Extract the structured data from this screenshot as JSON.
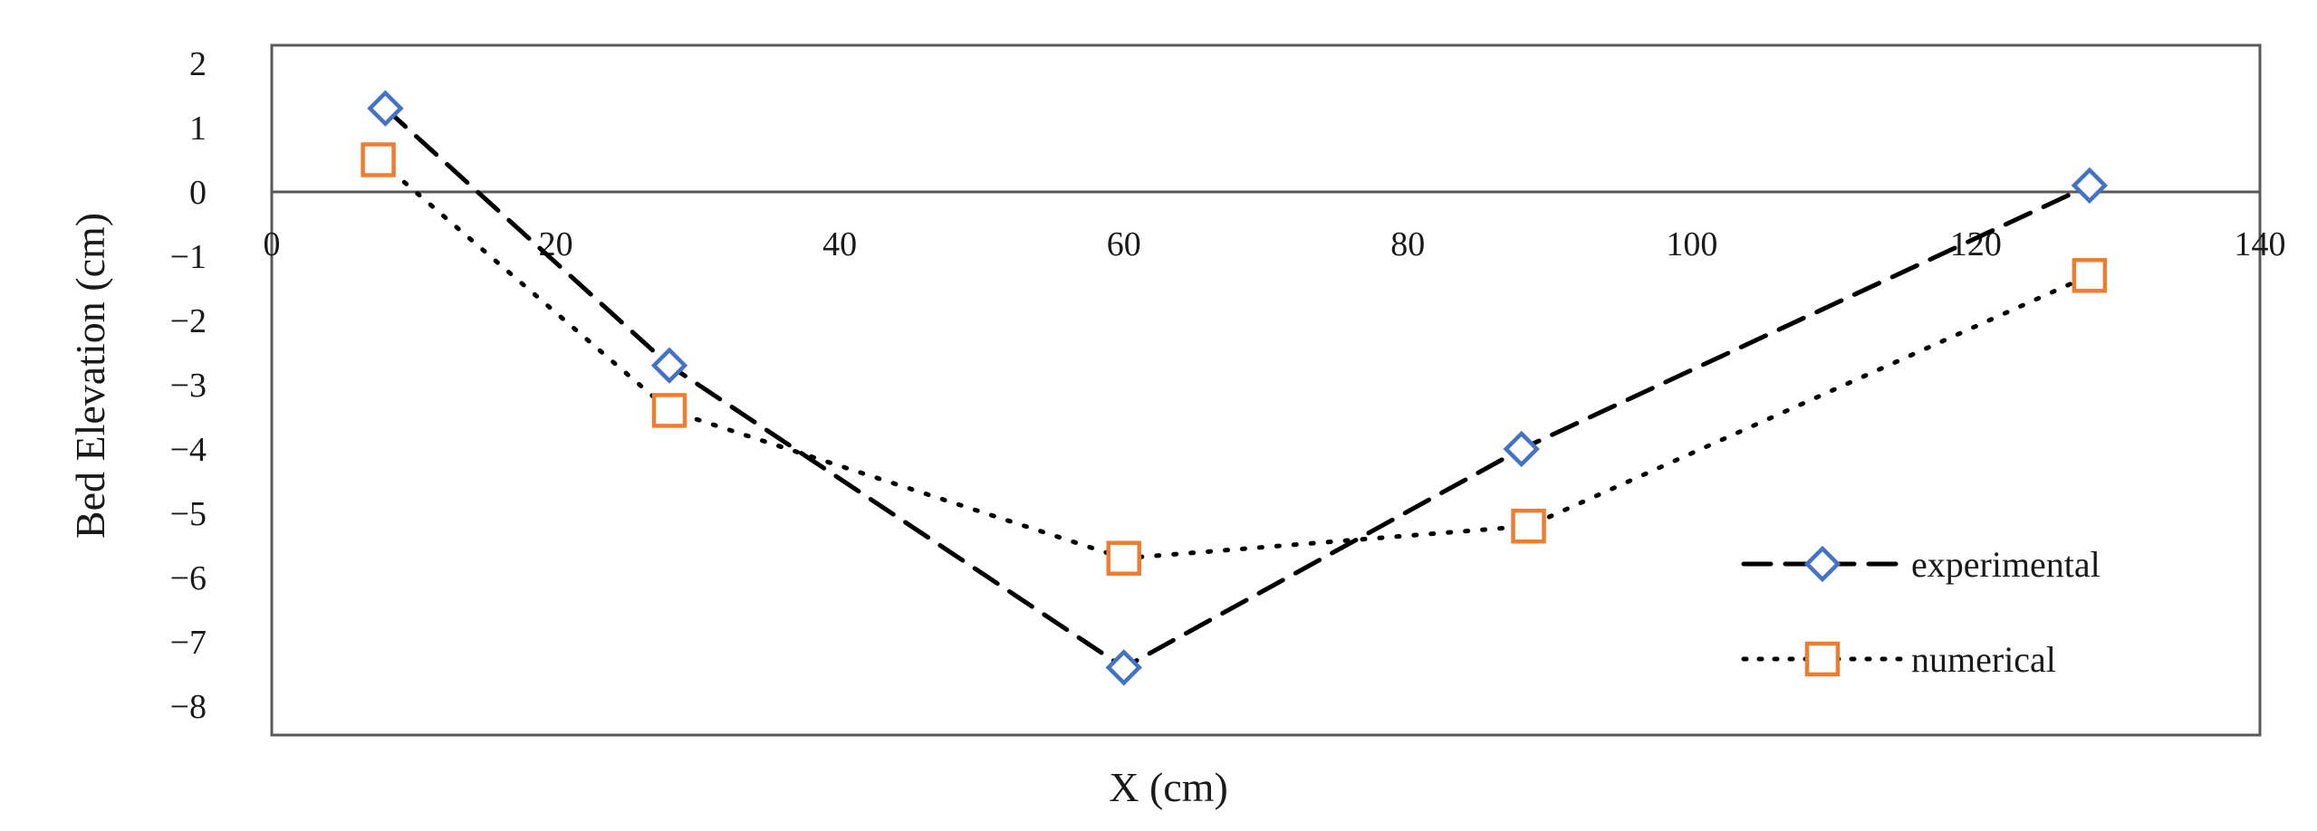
{
  "chart_data": {
    "type": "line",
    "xlabel": "X (cm)",
    "ylabel": "Bed Elevation (cm)",
    "xlim": [
      0,
      140
    ],
    "ylim": [
      -8,
      2
    ],
    "xticks": [
      0,
      20,
      40,
      60,
      80,
      100,
      120,
      140
    ],
    "yticks": [
      2,
      1,
      0,
      -1,
      -2,
      -3,
      -4,
      -5,
      -6,
      -7,
      -8
    ],
    "grid": false,
    "legend_position": "bottom-right",
    "series": [
      {
        "name": "experimental",
        "marker": "diamond",
        "line_style": "dashed",
        "color": "#4472c4",
        "points": [
          [
            8,
            1.3
          ],
          [
            28,
            -2.7
          ],
          [
            60,
            -7.4
          ],
          [
            88,
            -4.0
          ],
          [
            128,
            0.1
          ]
        ]
      },
      {
        "name": "numerical",
        "marker": "square",
        "line_style": "dotted",
        "color": "#ed7d31",
        "points": [
          [
            7.5,
            0.5
          ],
          [
            28,
            -3.4
          ],
          [
            60,
            -5.7
          ],
          [
            88.5,
            -5.2
          ],
          [
            128,
            -1.3
          ]
        ]
      }
    ]
  }
}
